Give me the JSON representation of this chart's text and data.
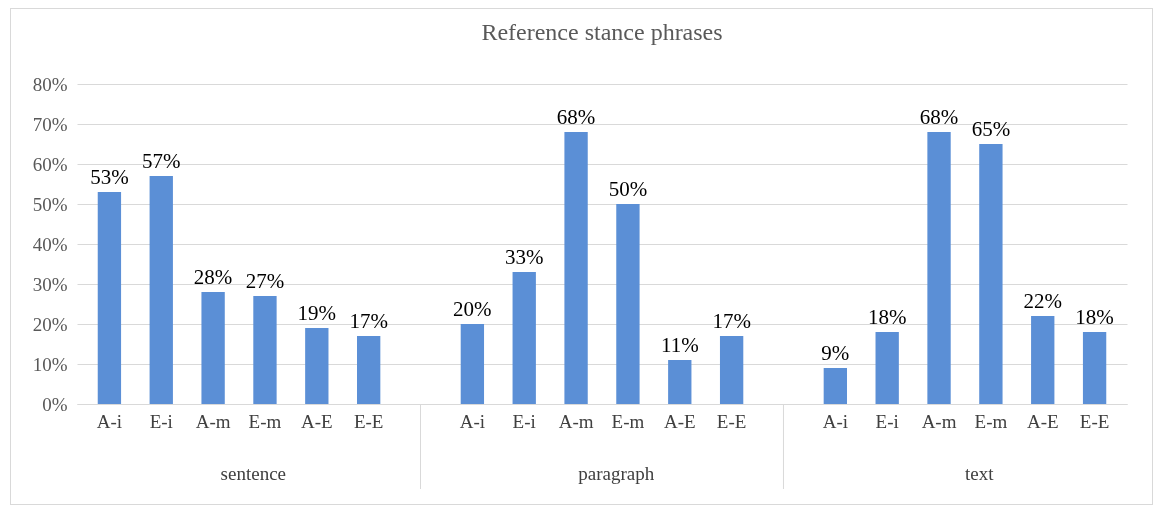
{
  "chart_data": {
    "type": "bar",
    "title": "Reference stance phrases",
    "categories": [
      "A-i",
      "E-i",
      "A-m",
      "E-m",
      "A-E",
      "E-E",
      "A-i",
      "E-i",
      "A-m",
      "E-m",
      "A-E",
      "E-E",
      "A-i",
      "E-i",
      "A-m",
      "E-m",
      "A-E",
      "E-E"
    ],
    "values": [
      53,
      57,
      28,
      27,
      19,
      17,
      20,
      33,
      68,
      50,
      11,
      17,
      9,
      18,
      68,
      65,
      22,
      18
    ],
    "value_labels": [
      "53%",
      "57%",
      "28%",
      "27%",
      "19%",
      "17%",
      "20%",
      "33%",
      "68%",
      "50%",
      "11%",
      "17%",
      "9%",
      "18%",
      "68%",
      "65%",
      "22%",
      "18%"
    ],
    "color": "#5b8fd6",
    "annotations": [
      "sentence",
      "paragraph",
      "text"
    ],
    "ylim": [
      0,
      80
    ],
    "yticks": [
      {
        "value": 0,
        "label": "0%"
      },
      {
        "value": 10,
        "label": "10%"
      },
      {
        "value": 20,
        "label": "20%"
      },
      {
        "value": 30,
        "label": "30%"
      },
      {
        "value": 40,
        "label": "40%"
      },
      {
        "value": 50,
        "label": "50%"
      },
      {
        "value": 60,
        "label": "60%"
      },
      {
        "value": 70,
        "label": "70%"
      },
      {
        "value": 80,
        "label": "80%"
      }
    ],
    "grid": "y"
  }
}
